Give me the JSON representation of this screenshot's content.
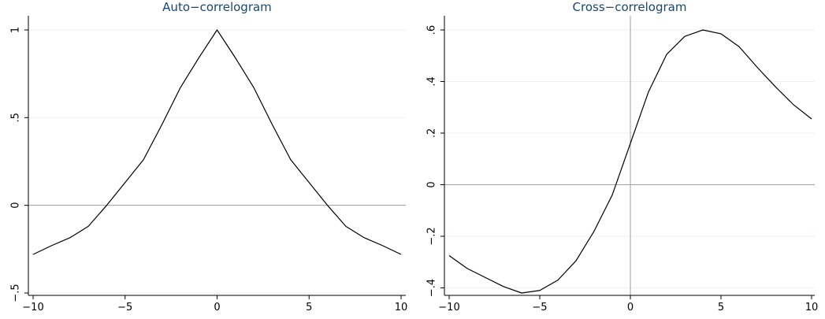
{
  "chart_data": [
    {
      "type": "line",
      "title": "Auto−correlogram",
      "xlabel": "",
      "ylabel": "",
      "xlim": [
        -10,
        10
      ],
      "ylim": [
        -0.5,
        1
      ],
      "xticks": [
        -10,
        -5,
        0,
        5,
        10
      ],
      "xtick_labels": [
        "−10",
        "−5",
        "0",
        "5",
        "10"
      ],
      "yticks": [
        -0.5,
        0,
        0.5,
        1
      ],
      "ytick_labels": [
        "−.5",
        "0",
        ".5",
        "1"
      ],
      "grid": true,
      "reference_lines": {
        "y": 0
      },
      "series": [
        {
          "x": [
            -10,
            -9,
            -8,
            -7,
            -6,
            -5,
            -4,
            -3,
            -2,
            -1,
            0,
            1,
            2,
            3,
            4,
            5,
            6,
            7,
            8,
            9,
            10
          ],
          "values": [
            -0.28,
            -0.23,
            -0.185,
            -0.12,
            0.0,
            0.13,
            0.26,
            0.46,
            0.67,
            0.84,
            1.0,
            0.84,
            0.67,
            0.46,
            0.26,
            0.13,
            0.0,
            -0.12,
            -0.185,
            -0.23,
            -0.28
          ]
        }
      ]
    },
    {
      "type": "line",
      "title": "Cross−correlogram",
      "xlabel": "",
      "ylabel": "",
      "xlim": [
        -10,
        10
      ],
      "ylim": [
        -0.42,
        0.6
      ],
      "xticks": [
        -10,
        -5,
        0,
        5,
        10
      ],
      "xtick_labels": [
        "−10",
        "−5",
        "0",
        "5",
        "10"
      ],
      "yticks": [
        -0.4,
        -0.2,
        0,
        0.2,
        0.4,
        0.6
      ],
      "ytick_labels": [
        "−.4",
        "−.2",
        "0",
        ".2",
        ".4",
        ".6"
      ],
      "grid": true,
      "reference_lines": {
        "x": 0,
        "y": 0
      },
      "series": [
        {
          "x": [
            -10,
            -9,
            -8,
            -7,
            -6,
            -5,
            -4,
            -3,
            -2,
            -1,
            0,
            1,
            2,
            3,
            4,
            5,
            6,
            7,
            8,
            9,
            10
          ],
          "values": [
            -0.275,
            -0.325,
            -0.36,
            -0.395,
            -0.42,
            -0.41,
            -0.37,
            -0.295,
            -0.18,
            -0.04,
            0.16,
            0.36,
            0.505,
            0.575,
            0.6,
            0.585,
            0.535,
            0.455,
            0.38,
            0.31,
            0.255
          ]
        }
      ]
    }
  ]
}
